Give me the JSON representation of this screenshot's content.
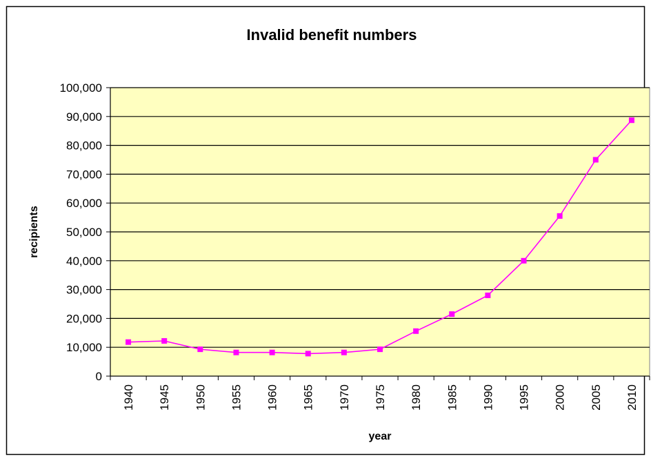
{
  "chart_data": {
    "type": "line",
    "title": "Invalid benefit numbers",
    "xlabel": "year",
    "ylabel": "recipients",
    "categories": [
      "1940",
      "1945",
      "1950",
      "1955",
      "1960",
      "1965",
      "1970",
      "1975",
      "1980",
      "1985",
      "1990",
      "1995",
      "2000",
      "2005",
      "2010"
    ],
    "y_ticks": [
      "0",
      "10,000",
      "20,000",
      "30,000",
      "40,000",
      "50,000",
      "60,000",
      "70,000",
      "80,000",
      "90,000",
      "100,000"
    ],
    "ylim": [
      0,
      100000
    ],
    "grid": true,
    "legend": "none",
    "series": [
      {
        "values": [
          11800,
          12200,
          9300,
          8200,
          8200,
          7800,
          8200,
          9300,
          15600,
          21500,
          28000,
          40000,
          55500,
          75000,
          88700
        ],
        "color": "#ff00ff",
        "marker": "square"
      }
    ],
    "colors": {
      "plot_background": "#ffffc0",
      "gridline": "#000000",
      "line": "#ff00ff"
    }
  }
}
